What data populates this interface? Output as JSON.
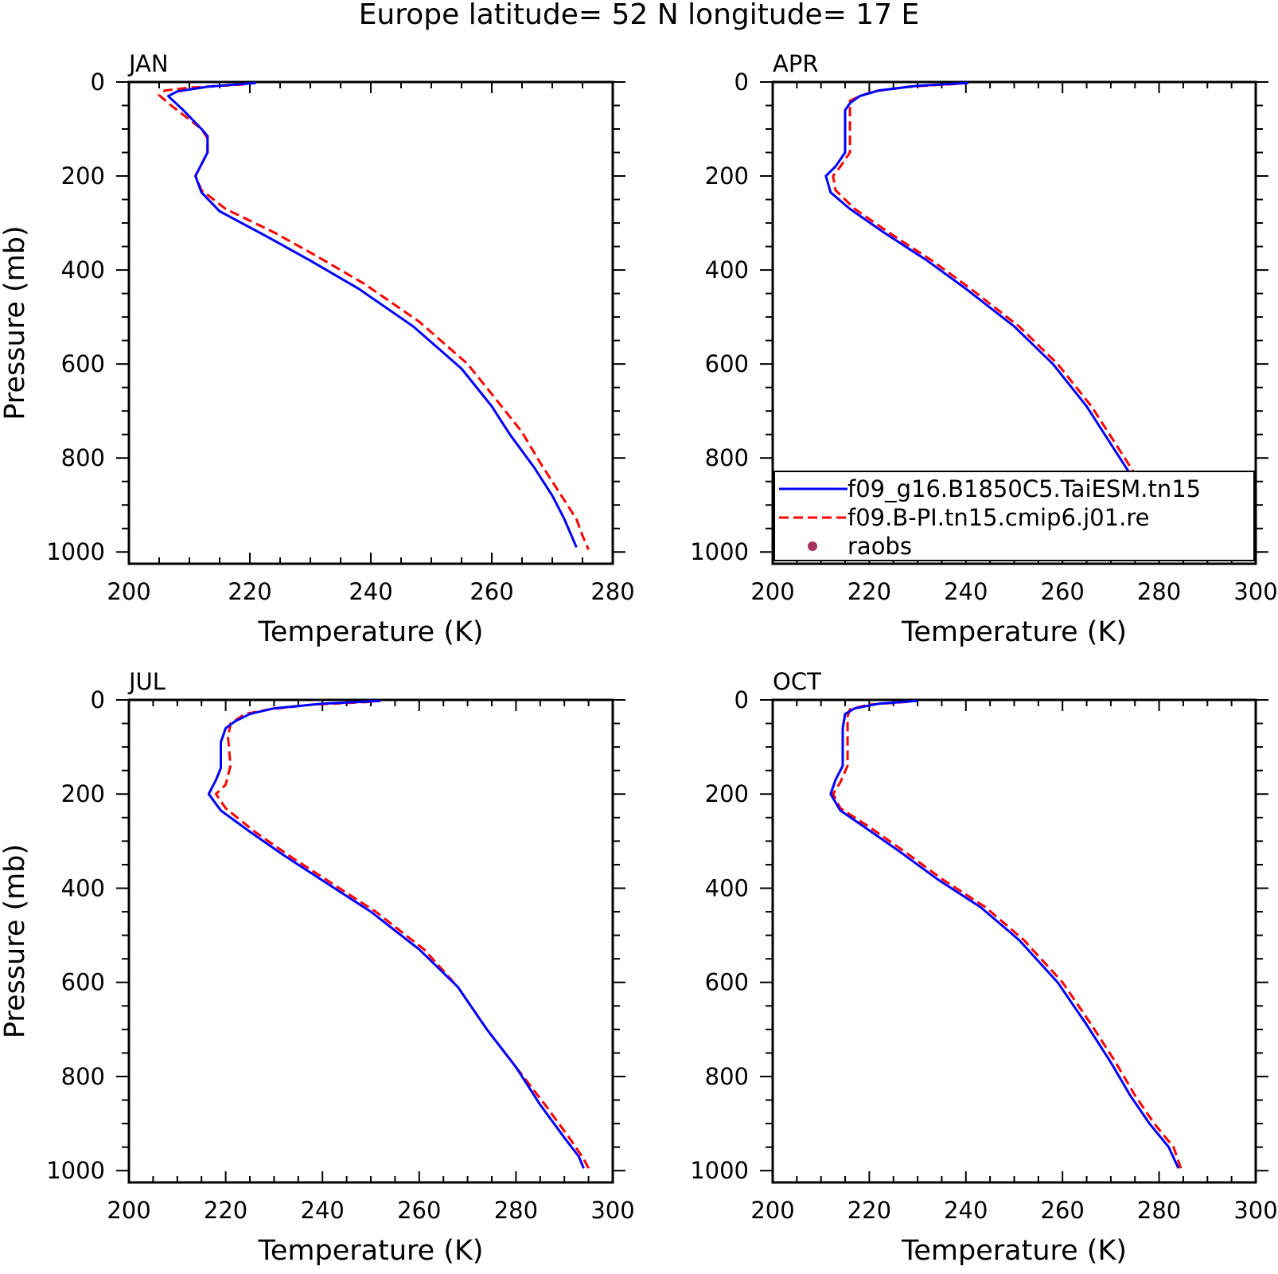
{
  "figure": {
    "title": "Europe  latitude= 52 N longitude= 17 E"
  },
  "legend": {
    "entries": [
      {
        "label": "f09_g16.B1850C5.TaiESM.tn15",
        "color": "#0000ff",
        "style": "solid"
      },
      {
        "label": "f09.B-PI.tn15.cmip6.j01.re",
        "color": "#ff0000",
        "style": "dashed"
      },
      {
        "label": "raobs",
        "color": "#a8315d",
        "style": "marker"
      }
    ]
  },
  "chart_data": [
    {
      "type": "line",
      "panel_label": "JAN",
      "xlabel": "Temperature (K)",
      "ylabel": "Pressure (mb)",
      "xlim": [
        200,
        280
      ],
      "ylim": [
        1025,
        0
      ],
      "xticks": [
        "200",
        "220",
        "240",
        "260",
        "280"
      ],
      "yticks": [
        "0",
        "200",
        "400",
        "600",
        "800",
        "1000"
      ],
      "series": [
        {
          "name": "f09_g16.B1850C5.TaiESM.tn15",
          "color": "#0000ff",
          "dash": "solid",
          "points": [
            [
              221,
              2
            ],
            [
              213,
              10
            ],
            [
              208,
              20
            ],
            [
              206.5,
              30
            ],
            [
              209,
              60
            ],
            [
              212,
              100
            ],
            [
              213,
              115
            ],
            [
              213,
              150
            ],
            [
              211,
              200
            ],
            [
              212,
              235
            ],
            [
              215,
              275
            ],
            [
              223,
              330
            ],
            [
              230,
              380
            ],
            [
              238,
              440
            ],
            [
              247,
              520
            ],
            [
              255,
              610
            ],
            [
              260,
              690
            ],
            [
              263,
              750
            ],
            [
              267,
              820
            ],
            [
              270,
              880
            ],
            [
              272,
              930
            ],
            [
              273,
              960
            ],
            [
              274,
              990
            ]
          ]
        },
        {
          "name": "f09.B-PI.tn15.cmip6.j01.re",
          "color": "#ff0000",
          "dash": "dashed",
          "points": [
            [
              219,
              5
            ],
            [
              210,
              12
            ],
            [
              206,
              18
            ],
            [
              205,
              28
            ],
            [
              207,
              50
            ],
            [
              210,
              80
            ],
            [
              212,
              100
            ],
            [
              213,
              120
            ],
            [
              213,
              150
            ],
            [
              211,
              200
            ],
            [
              212,
              230
            ],
            [
              216,
              270
            ],
            [
              224,
              320
            ],
            [
              231,
              370
            ],
            [
              239,
              430
            ],
            [
              248,
              510
            ],
            [
              256,
              600
            ],
            [
              261,
              680
            ],
            [
              265,
              745
            ],
            [
              268,
              810
            ],
            [
              271,
              870
            ],
            [
              274,
              930
            ],
            [
              275,
              965
            ],
            [
              276,
              995
            ]
          ]
        }
      ]
    },
    {
      "type": "line",
      "panel_label": "APR",
      "xlabel": "Temperature (K)",
      "ylabel": "",
      "xlim": [
        200,
        300
      ],
      "ylim": [
        1025,
        0
      ],
      "xticks": [
        "200",
        "220",
        "240",
        "260",
        "280",
        "300"
      ],
      "yticks": [
        "0",
        "200",
        "400",
        "600",
        "800",
        "1000"
      ],
      "series": [
        {
          "name": "f09_g16.B1850C5.TaiESM.tn15",
          "color": "#0000ff",
          "dash": "solid",
          "points": [
            [
              240.5,
              2
            ],
            [
              230,
              8
            ],
            [
              222,
              18
            ],
            [
              218,
              30
            ],
            [
              216,
              45
            ],
            [
              215,
              60
            ],
            [
              215,
              100
            ],
            [
              215,
              150
            ],
            [
              213,
              180
            ],
            [
              211,
              200
            ],
            [
              212,
              235
            ],
            [
              216,
              270
            ],
            [
              223,
              320
            ],
            [
              232,
              380
            ],
            [
              240,
              440
            ],
            [
              250,
              520
            ],
            [
              258,
              600
            ],
            [
              265,
              690
            ],
            [
              270,
              770
            ],
            [
              275,
              850
            ],
            [
              280,
              930
            ],
            [
              283,
              980
            ],
            [
              284,
              995
            ]
          ]
        },
        {
          "name": "f09.B-PI.tn15.cmip6.j01.re",
          "color": "#ff0000",
          "dash": "dashed",
          "points": [
            [
              238,
              4
            ],
            [
              228,
              10
            ],
            [
              221,
              20
            ],
            [
              218,
              30
            ],
            [
              216,
              40
            ],
            [
              216,
              100
            ],
            [
              216,
              150
            ],
            [
              214,
              180
            ],
            [
              212.5,
              200
            ],
            [
              213,
              230
            ],
            [
              217,
              270
            ],
            [
              224,
              320
            ],
            [
              233,
              380
            ],
            [
              241,
              440
            ],
            [
              251,
              520
            ],
            [
              259,
              600
            ],
            [
              266,
              690
            ],
            [
              271,
              770
            ],
            [
              276,
              850
            ],
            [
              281,
              930
            ],
            [
              283,
              975
            ],
            [
              284.5,
              995
            ]
          ]
        }
      ]
    },
    {
      "type": "line",
      "panel_label": "JUL",
      "xlabel": "Temperature (K)",
      "ylabel": "Pressure (mb)",
      "xlim": [
        200,
        300
      ],
      "ylim": [
        1025,
        0
      ],
      "xticks": [
        "200",
        "220",
        "240",
        "260",
        "280",
        "300"
      ],
      "yticks": [
        "0",
        "200",
        "400",
        "600",
        "800",
        "1000"
      ],
      "series": [
        {
          "name": "f09_g16.B1850C5.TaiESM.tn15",
          "color": "#0000ff",
          "dash": "solid",
          "points": [
            [
              252,
              2
            ],
            [
              240,
              8
            ],
            [
              230,
              18
            ],
            [
              225,
              30
            ],
            [
              222,
              45
            ],
            [
              220,
              60
            ],
            [
              219,
              90
            ],
            [
              219,
              145
            ],
            [
              218,
              170
            ],
            [
              216.5,
              200
            ],
            [
              219,
              235
            ],
            [
              225,
              280
            ],
            [
              232,
              330
            ],
            [
              241,
              390
            ],
            [
              250,
              450
            ],
            [
              260,
              530
            ],
            [
              268,
              610
            ],
            [
              274,
              700
            ],
            [
              280,
              780
            ],
            [
              285,
              860
            ],
            [
              290,
              930
            ],
            [
              293,
              970
            ],
            [
              294,
              995
            ]
          ]
        },
        {
          "name": "f09.B-PI.tn15.cmip6.j01.re",
          "color": "#ff0000",
          "dash": "dashed",
          "points": [
            [
              250,
              4
            ],
            [
              238,
              10
            ],
            [
              229,
              20
            ],
            [
              224,
              30
            ],
            [
              221,
              50
            ],
            [
              220.5,
              80
            ],
            [
              221,
              140
            ],
            [
              220,
              180
            ],
            [
              218,
              200
            ],
            [
              220,
              230
            ],
            [
              226,
              280
            ],
            [
              233,
              330
            ],
            [
              242,
              390
            ],
            [
              251,
              450
            ],
            [
              261,
              530
            ],
            [
              268,
              610
            ],
            [
              274,
              700
            ],
            [
              280,
              780
            ],
            [
              286,
              860
            ],
            [
              291,
              930
            ],
            [
              294,
              975
            ],
            [
              295,
              995
            ]
          ]
        }
      ]
    },
    {
      "type": "line",
      "panel_label": "OCT",
      "xlabel": "Temperature (K)",
      "ylabel": "",
      "xlim": [
        200,
        300
      ],
      "ylim": [
        1025,
        0
      ],
      "xticks": [
        "200",
        "220",
        "240",
        "260",
        "280",
        "300"
      ],
      "yticks": [
        "0",
        "200",
        "400",
        "600",
        "800",
        "1000"
      ],
      "series": [
        {
          "name": "f09_g16.B1850C5.TaiESM.tn15",
          "color": "#0000ff",
          "dash": "solid",
          "points": [
            [
              230,
              2
            ],
            [
              222,
              8
            ],
            [
              217,
              18
            ],
            [
              215,
              30
            ],
            [
              214.5,
              60
            ],
            [
              214.5,
              140
            ],
            [
              213,
              170
            ],
            [
              212,
              200
            ],
            [
              214,
              235
            ],
            [
              219,
              270
            ],
            [
              226,
              320
            ],
            [
              234,
              380
            ],
            [
              243,
              440
            ],
            [
              251,
              510
            ],
            [
              259,
              600
            ],
            [
              265,
              690
            ],
            [
              270,
              770
            ],
            [
              274,
              840
            ],
            [
              278,
              900
            ],
            [
              282,
              950
            ],
            [
              284,
              995
            ]
          ]
        },
        {
          "name": "f09.B-PI.tn15.cmip6.j01.re",
          "color": "#ff0000",
          "dash": "dashed",
          "points": [
            [
              228,
              4
            ],
            [
              220,
              10
            ],
            [
              216,
              20
            ],
            [
              215.5,
              35
            ],
            [
              215.5,
              80
            ],
            [
              215.5,
              140
            ],
            [
              214,
              175
            ],
            [
              212.5,
              200
            ],
            [
              214,
              230
            ],
            [
              220,
              270
            ],
            [
              227,
              320
            ],
            [
              235,
              380
            ],
            [
              244,
              440
            ],
            [
              252,
              510
            ],
            [
              260,
              600
            ],
            [
              266,
              690
            ],
            [
              271,
              770
            ],
            [
              275,
              840
            ],
            [
              279,
              900
            ],
            [
              283,
              950
            ],
            [
              284.5,
              995
            ]
          ]
        }
      ]
    }
  ]
}
